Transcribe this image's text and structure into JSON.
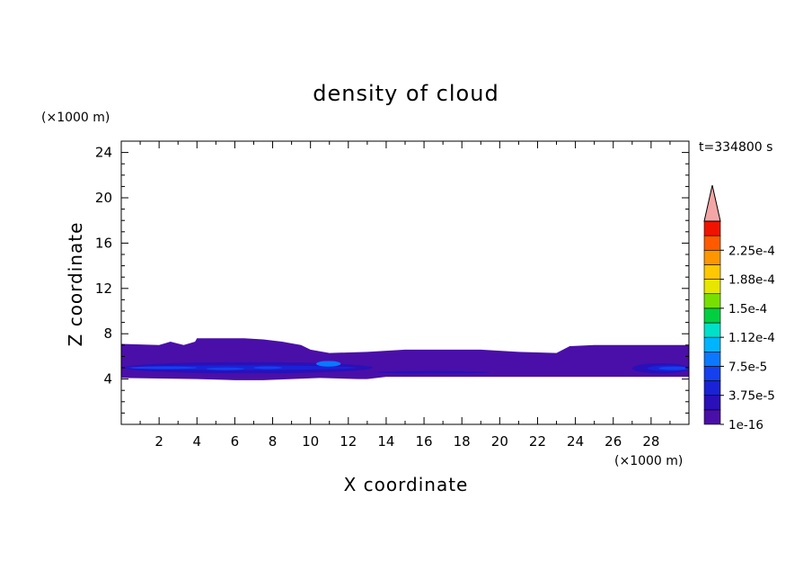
{
  "chart_data": {
    "type": "heatmap",
    "title": "density of cloud",
    "xlabel": "X coordinate",
    "ylabel": "Z coordinate",
    "x_unit": "(×1000 m)",
    "y_unit": "(×1000 m)",
    "time_label": "t=334800 s",
    "xlim": [
      0,
      30
    ],
    "ylim": [
      0,
      25
    ],
    "x_ticks": [
      "2",
      "4",
      "6",
      "8",
      "10",
      "12",
      "14",
      "16",
      "18",
      "20",
      "22",
      "24",
      "26",
      "28"
    ],
    "y_ticks": [
      "4",
      "8",
      "12",
      "16",
      "20",
      "24"
    ],
    "colorbar": {
      "labels": [
        "1e-16",
        "3.75e-5",
        "7.5e-5",
        "1.12e-4",
        "1.5e-4",
        "1.88e-4",
        "2.25e-4"
      ],
      "levels": [
        1e-16,
        1.875e-05,
        3.75e-05,
        5.625e-05,
        7.5e-05,
        9.375e-05,
        0.000112,
        0.00013125,
        0.00015,
        0.00016875,
        0.000188,
        0.00020625,
        0.000225,
        0.00024375
      ],
      "colors": [
        "#4a0fa8",
        "#2a10b8",
        "#1a22d6",
        "#1440f0",
        "#0a78ff",
        "#00b4ff",
        "#00e0c8",
        "#00d040",
        "#78e000",
        "#e6e600",
        "#ffc800",
        "#ff9600",
        "#ff5a00",
        "#f01400"
      ],
      "extend_color": "#f4a6a6"
    },
    "cloud_layer": {
      "base_z": 4.2,
      "top_z_profile": [
        [
          0.0,
          7.1
        ],
        [
          2.0,
          7.0
        ],
        [
          2.6,
          7.3
        ],
        [
          3.3,
          7.0
        ],
        [
          3.9,
          7.3
        ],
        [
          4.0,
          7.6
        ],
        [
          5.5,
          7.6
        ],
        [
          6.5,
          7.6
        ],
        [
          7.5,
          7.5
        ],
        [
          8.5,
          7.3
        ],
        [
          9.5,
          7.0
        ],
        [
          10.0,
          6.6
        ],
        [
          11.0,
          6.3
        ],
        [
          13.0,
          6.4
        ],
        [
          15.0,
          6.6
        ],
        [
          17.5,
          6.6
        ],
        [
          19.0,
          6.6
        ],
        [
          21.0,
          6.4
        ],
        [
          23.0,
          6.3
        ],
        [
          23.7,
          6.9
        ],
        [
          25.0,
          7.0
        ],
        [
          27.0,
          7.0
        ],
        [
          28.5,
          7.0
        ],
        [
          30.0,
          7.0
        ]
      ],
      "bottom_z_profile": [
        [
          0.0,
          4.1
        ],
        [
          4.0,
          4.0
        ],
        [
          6.0,
          3.9
        ],
        [
          7.5,
          3.9
        ],
        [
          9.0,
          4.0
        ],
        [
          10.5,
          4.1
        ],
        [
          12.5,
          4.0
        ],
        [
          13.0,
          4.0
        ],
        [
          14.0,
          4.2
        ],
        [
          30.0,
          4.2
        ]
      ],
      "core_band": [
        {
          "x_start": 0.1,
          "x_end": 13.3,
          "z_low": 4.5,
          "z_high": 5.5,
          "level": 1
        },
        {
          "x_start": 0.2,
          "x_end": 12.4,
          "z_low": 4.8,
          "z_high": 5.2,
          "level": 2
        },
        {
          "x_start": 0.5,
          "x_end": 4.0,
          "z_low": 4.9,
          "z_high": 5.1,
          "level": 3
        },
        {
          "x_start": 4.5,
          "x_end": 6.5,
          "z_low": 4.8,
          "z_high": 5.0,
          "level": 3
        },
        {
          "x_start": 7.0,
          "x_end": 8.5,
          "z_low": 4.9,
          "z_high": 5.1,
          "level": 3
        },
        {
          "x_start": 10.3,
          "x_end": 11.6,
          "z_low": 5.1,
          "z_high": 5.6,
          "level": 4
        },
        {
          "x_start": 13.5,
          "x_end": 19.5,
          "z_low": 4.5,
          "z_high": 4.7,
          "level": 1
        },
        {
          "x_start": 27.0,
          "x_end": 30.0,
          "z_low": 4.5,
          "z_high": 5.4,
          "level": 1
        },
        {
          "x_start": 27.8,
          "x_end": 30.0,
          "z_low": 4.7,
          "z_high": 5.2,
          "level": 2
        },
        {
          "x_start": 28.4,
          "x_end": 30.0,
          "z_low": 4.8,
          "z_high": 5.1,
          "level": 3
        }
      ]
    }
  }
}
